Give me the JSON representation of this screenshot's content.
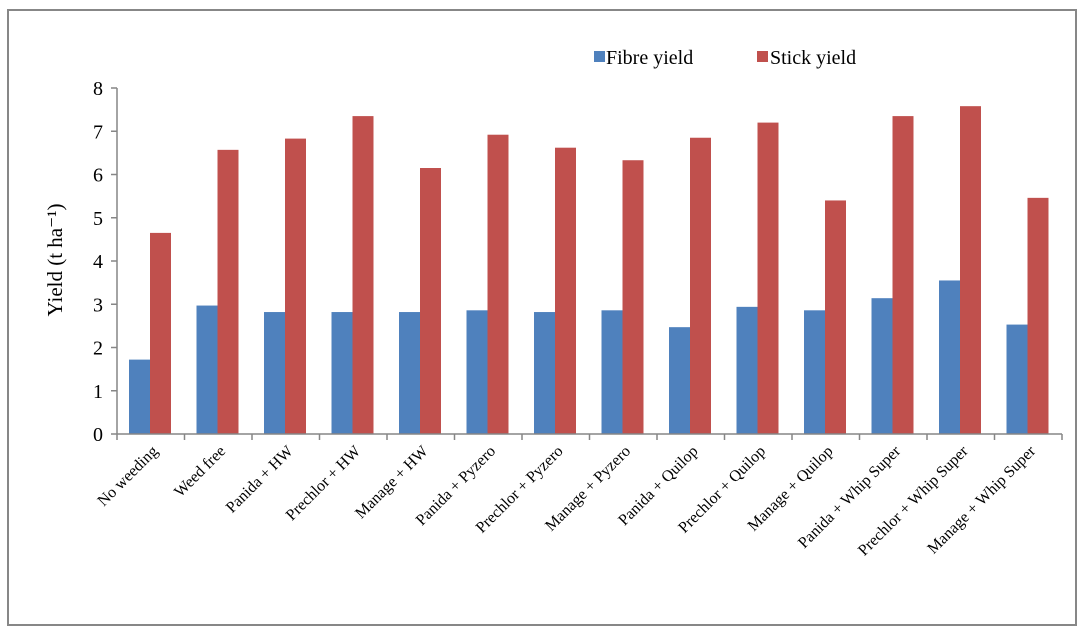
{
  "chart_data": {
    "type": "bar",
    "title": "",
    "xlabel": "",
    "ylabel": "Yield (t ha⁻¹)",
    "ylim": [
      0,
      8
    ],
    "yticks": [
      0,
      1,
      2,
      3,
      4,
      5,
      6,
      7,
      8
    ],
    "grid": false,
    "legend_position": "top-right",
    "categories": [
      "No weeding",
      "Weed free",
      "Panida + HW",
      "Prechlor + HW",
      "Manage + HW",
      "Panida + Pyzero",
      "Prechlor + Pyzero",
      "Manage + Pyzero",
      "Panida + Quilop",
      "Prechlor + Quilop",
      "Manage + Quilop",
      "Panida + Whip Super",
      "Prechlor + Whip Super",
      "Manage + Whip Super"
    ],
    "series": [
      {
        "name": "Fibre yield",
        "color": "#4f81bd",
        "values": [
          1.72,
          2.97,
          2.82,
          2.82,
          2.82,
          2.86,
          2.82,
          2.86,
          2.47,
          2.94,
          2.86,
          3.14,
          3.55,
          2.53
        ]
      },
      {
        "name": "Stick yield",
        "color": "#c0504d",
        "values": [
          4.65,
          6.57,
          6.83,
          7.35,
          6.15,
          6.92,
          6.62,
          6.33,
          6.85,
          7.2,
          5.4,
          7.35,
          7.58,
          5.46
        ]
      }
    ]
  }
}
